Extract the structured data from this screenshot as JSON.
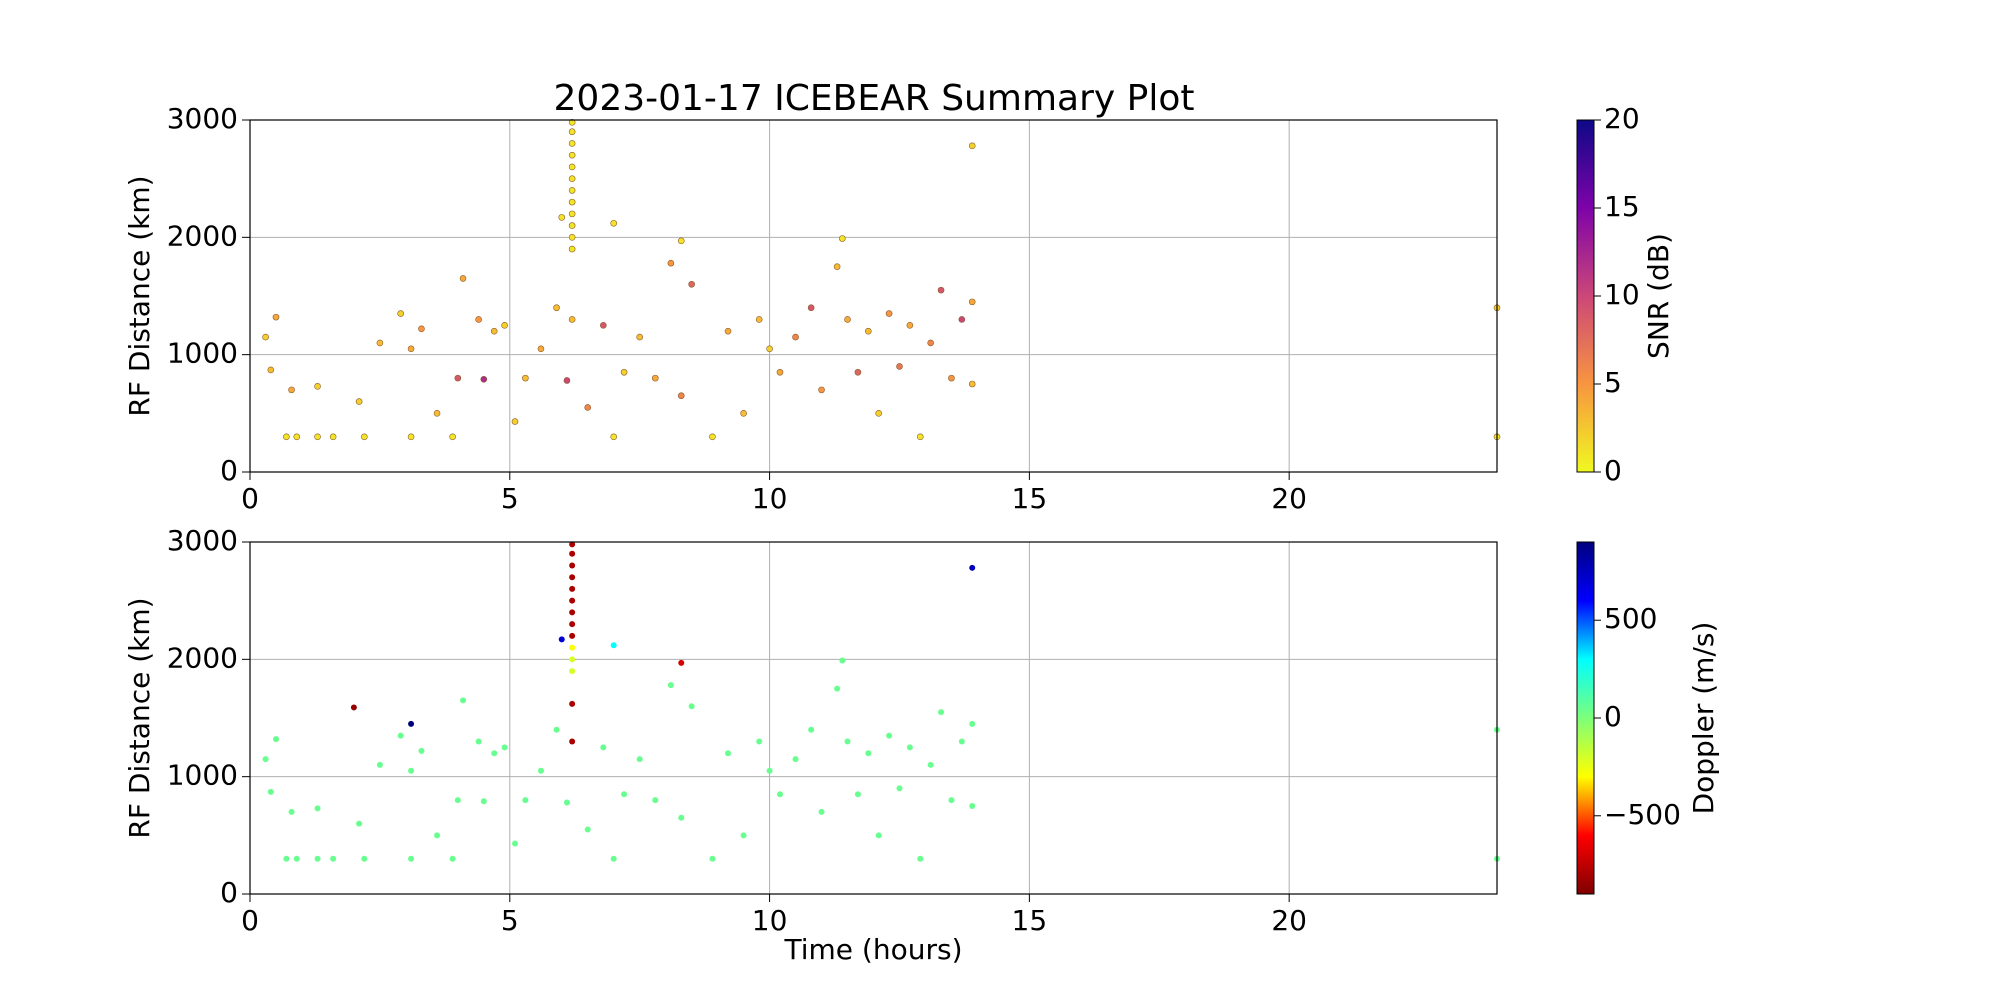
{
  "chart_data": [
    {
      "type": "scatter",
      "title": "2023-01-17 ICEBEAR Summary Plot",
      "ylabel": "RF Distance (km)",
      "xlim": [
        0,
        24
      ],
      "xticks": [
        0,
        5,
        10,
        15,
        20
      ],
      "ylim": [
        0,
        3000
      ],
      "yticks": [
        0,
        1000,
        2000,
        3000
      ],
      "grid": true,
      "x": [
        0.3,
        0.5,
        0.4,
        0.7,
        0.9,
        0.8,
        1.3,
        1.3,
        1.6,
        2.1,
        2.2,
        2.5,
        2.9,
        3.1,
        3.1,
        3.3,
        3.6,
        3.9,
        4.1,
        4.0,
        4.4,
        4.5,
        4.7,
        4.9,
        5.1,
        5.3,
        5.6,
        5.9,
        6.1,
        6.2,
        6.5,
        6.8,
        7.0,
        7.2,
        7.5,
        7.8,
        8.1,
        8.3,
        8.5,
        8.9,
        9.2,
        9.5,
        9.8,
        10.0,
        10.2,
        10.5,
        10.8,
        11.0,
        11.3,
        11.5,
        11.7,
        11.9,
        12.1,
        12.3,
        12.5,
        12.7,
        12.9,
        13.1,
        13.3,
        13.5,
        13.7,
        13.9,
        13.9,
        13.9,
        24,
        24,
        6.0,
        7.0,
        8.3,
        11.4,
        6.2,
        6.2,
        6.2,
        6.2,
        6.2,
        6.2,
        6.2,
        6.2,
        6.2,
        6.2,
        6.2,
        6.2
      ],
      "values": [
        1150,
        1320,
        870,
        300,
        300,
        700,
        730,
        300,
        300,
        600,
        300,
        1100,
        1350,
        1050,
        300,
        1220,
        500,
        300,
        1650,
        800,
        1300,
        790,
        1200,
        1250,
        430,
        800,
        1050,
        1400,
        780,
        1300,
        550,
        1250,
        300,
        850,
        1150,
        800,
        1780,
        650,
        1600,
        300,
        1200,
        500,
        1300,
        1050,
        850,
        1150,
        1400,
        700,
        1750,
        1300,
        850,
        1200,
        500,
        1350,
        900,
        1250,
        300,
        1100,
        1550,
        800,
        1300,
        1450,
        750,
        2780,
        1400,
        300,
        2170,
        2120,
        1970,
        1990,
        1900,
        2000,
        2100,
        2200,
        2300,
        2400,
        2500,
        2600,
        2700,
        2800,
        2900,
        2980
      ],
      "color_values": [
        2,
        4,
        3,
        1,
        1,
        4,
        2,
        1,
        1,
        2,
        1,
        3,
        2,
        4,
        1,
        5,
        3,
        1,
        4,
        9,
        5,
        12,
        3,
        2,
        2,
        3,
        4,
        3,
        10,
        3,
        6,
        9,
        1,
        2,
        3,
        4,
        5,
        6,
        8,
        1,
        4,
        3,
        3,
        2,
        4,
        6,
        9,
        5,
        3,
        4,
        8,
        3,
        2,
        5,
        7,
        4,
        1,
        6,
        9,
        5,
        10,
        4,
        3,
        2,
        2,
        1,
        1,
        1,
        1,
        1,
        1,
        1,
        1,
        1,
        1,
        1,
        1,
        1,
        1,
        1,
        1,
        1
      ],
      "colorbar_label": "SNR (dB)",
      "clim": [
        0,
        20
      ],
      "cticks": [
        0,
        5,
        10,
        15,
        20
      ],
      "colormap": [
        "#f0f921",
        "#f89540",
        "#cc4778",
        "#7e03a8",
        "#0d0887"
      ],
      "edgecolor": "#8a5a2a"
    },
    {
      "type": "scatter",
      "ylabel": "RF Distance (km)",
      "xlabel": "Time (hours)",
      "xlim": [
        0,
        24
      ],
      "xticks": [
        0,
        5,
        10,
        15,
        20
      ],
      "ylim": [
        0,
        3000
      ],
      "yticks": [
        0,
        1000,
        2000,
        3000
      ],
      "grid": true,
      "x": [
        0.3,
        0.5,
        0.4,
        0.7,
        0.9,
        0.8,
        1.3,
        1.3,
        1.6,
        2.1,
        2.2,
        2.5,
        2.9,
        3.1,
        3.1,
        3.3,
        3.6,
        3.9,
        4.1,
        4.0,
        4.4,
        4.5,
        4.7,
        4.9,
        5.1,
        5.3,
        5.6,
        5.9,
        6.1,
        6.2,
        6.5,
        6.8,
        7.0,
        7.2,
        7.5,
        7.8,
        8.1,
        8.3,
        8.5,
        8.9,
        9.2,
        9.5,
        9.8,
        10.0,
        10.2,
        10.5,
        10.8,
        11.0,
        11.3,
        11.5,
        11.7,
        11.9,
        12.1,
        12.3,
        12.5,
        12.7,
        12.9,
        13.1,
        13.3,
        13.5,
        13.7,
        13.9,
        13.9,
        13.9,
        24,
        24,
        6.0,
        7.0,
        8.3,
        11.4,
        6.2,
        6.2,
        6.2,
        6.2,
        6.2,
        6.2,
        6.2,
        6.2,
        6.2,
        6.2,
        6.2,
        6.2,
        2.0,
        3.1,
        6.2
      ],
      "values": [
        1150,
        1320,
        870,
        300,
        300,
        700,
        730,
        300,
        300,
        600,
        300,
        1100,
        1350,
        1050,
        300,
        1220,
        500,
        300,
        1650,
        800,
        1300,
        790,
        1200,
        1250,
        430,
        800,
        1050,
        1400,
        780,
        1300,
        550,
        1250,
        300,
        850,
        1150,
        800,
        1780,
        650,
        1600,
        300,
        1200,
        500,
        1300,
        1050,
        850,
        1150,
        1400,
        700,
        1750,
        1300,
        850,
        1200,
        500,
        1350,
        900,
        1250,
        300,
        1100,
        1550,
        800,
        1300,
        1450,
        750,
        2780,
        1400,
        300,
        2170,
        2120,
        1970,
        1990,
        1900,
        2000,
        2100,
        2200,
        2300,
        2400,
        2500,
        2600,
        2700,
        2800,
        2900,
        2980,
        1590,
        1450,
        1620
      ],
      "color_values": [
        50,
        50,
        50,
        50,
        50,
        50,
        50,
        50,
        50,
        50,
        50,
        50,
        50,
        50,
        50,
        50,
        50,
        50,
        50,
        50,
        50,
        50,
        50,
        50,
        50,
        50,
        50,
        50,
        50,
        -800,
        50,
        50,
        50,
        50,
        50,
        50,
        50,
        50,
        50,
        50,
        50,
        50,
        50,
        50,
        50,
        50,
        50,
        50,
        50,
        50,
        50,
        50,
        50,
        50,
        50,
        50,
        50,
        50,
        50,
        50,
        50,
        50,
        50,
        750,
        50,
        50,
        700,
        300,
        -700,
        50,
        -200,
        -200,
        -300,
        -800,
        -800,
        -800,
        -800,
        -800,
        -800,
        -800,
        -800,
        -800,
        -850,
        900,
        -800
      ],
      "colorbar_label": "Doppler (m/s)",
      "clim": [
        -900,
        900
      ],
      "cticks": [
        {
          "value": -500,
          "label": "−500"
        },
        0,
        500
      ],
      "colormap": [
        "#7f0000",
        "#ff0000",
        "#ffff00",
        "#7dff7a",
        "#00ffff",
        "#0000ff",
        "#00007f"
      ],
      "edgecolor": "none"
    }
  ]
}
